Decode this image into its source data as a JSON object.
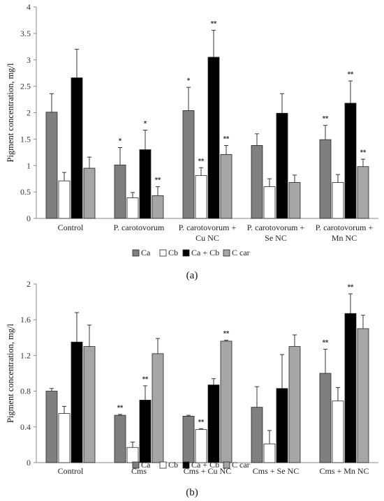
{
  "panels": [
    "(a)",
    "(b)"
  ],
  "chart_data": [
    {
      "type": "bar",
      "ylabel": "Pigment concentration, mg/l",
      "ylim": [
        0,
        4
      ],
      "yticks": [
        "0",
        "0.5",
        "1",
        "1.5",
        "2",
        "2.5",
        "3",
        "3.5",
        "4"
      ],
      "categories": [
        [
          "Control"
        ],
        [
          "P. carotovorum"
        ],
        [
          "P. carotovorum +",
          "Cu NC"
        ],
        [
          "P. carotovorum +",
          "Se NC"
        ],
        [
          "P. carotovorum +",
          "Mn NC"
        ]
      ],
      "series": [
        {
          "name": "Ca",
          "color": "#7f7f7f",
          "values": [
            2.01,
            1.01,
            2.04,
            1.38,
            1.49
          ],
          "errors": [
            0.35,
            0.33,
            0.44,
            0.22,
            0.27
          ],
          "labels": [
            "",
            "*",
            "*",
            "",
            "**"
          ]
        },
        {
          "name": "Cb",
          "color": "#ffffff",
          "values": [
            0.71,
            0.39,
            0.81,
            0.6,
            0.68
          ],
          "errors": [
            0.16,
            0.1,
            0.15,
            0.15,
            0.15
          ],
          "labels": [
            "",
            "",
            "**",
            "",
            ""
          ]
        },
        {
          "name": "Ca + Cb",
          "color": "#000000",
          "values": [
            2.66,
            1.3,
            3.05,
            1.99,
            2.18
          ],
          "errors": [
            0.54,
            0.37,
            0.51,
            0.37,
            0.42
          ],
          "labels": [
            "",
            "*",
            "**",
            "",
            "**"
          ]
        },
        {
          "name": "C car",
          "color": "#a6a6a6",
          "values": [
            0.95,
            0.43,
            1.21,
            0.68,
            0.98
          ],
          "errors": [
            0.21,
            0.17,
            0.17,
            0.14,
            0.14
          ],
          "labels": [
            "",
            "**",
            "**",
            "",
            "**"
          ]
        }
      ],
      "legend": "bottom"
    },
    {
      "type": "bar",
      "ylabel": "Pigment concentration, mg/l",
      "ylim": [
        0,
        2
      ],
      "yticks": [
        "0",
        "0.4",
        "0.8",
        "1.2",
        "1.6",
        "2"
      ],
      "categories": [
        [
          "Control"
        ],
        [
          "Cms"
        ],
        [
          "Cms + Cu NC"
        ],
        [
          "Cms + Se NC"
        ],
        [
          "Cms + Mn NC"
        ]
      ],
      "series": [
        {
          "name": "Ca",
          "color": "#7f7f7f",
          "values": [
            0.8,
            0.53,
            0.52,
            0.62,
            1.0
          ],
          "errors": [
            0.03,
            0.01,
            0.01,
            0.23,
            0.27
          ],
          "labels": [
            "",
            "**",
            "",
            "",
            "**"
          ]
        },
        {
          "name": "Cb",
          "color": "#ffffff",
          "values": [
            0.55,
            0.17,
            0.37,
            0.21,
            0.69
          ],
          "errors": [
            0.08,
            0.06,
            0.01,
            0.15,
            0.15
          ],
          "labels": [
            "",
            "",
            "**",
            "",
            ""
          ]
        },
        {
          "name": "Ca + Cb",
          "color": "#000000",
          "values": [
            1.35,
            0.7,
            0.87,
            0.83,
            1.67
          ],
          "errors": [
            0.33,
            0.16,
            0.07,
            0.38,
            0.22
          ],
          "labels": [
            "",
            "**",
            "",
            "",
            "**"
          ]
        },
        {
          "name": "C car",
          "color": "#a6a6a6",
          "values": [
            1.3,
            1.22,
            1.36,
            1.3,
            1.5
          ],
          "errors": [
            0.24,
            0.17,
            0.01,
            0.13,
            0.15
          ],
          "labels": [
            "",
            "",
            "**",
            "",
            ""
          ]
        }
      ],
      "legend": "bottom"
    }
  ]
}
